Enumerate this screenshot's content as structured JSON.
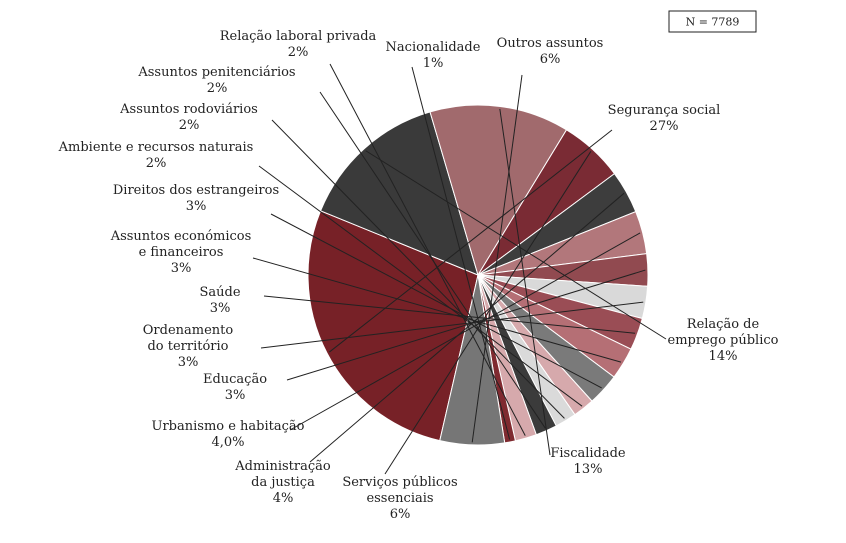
{
  "chart_data": {
    "type": "pie",
    "annotation": "N = 7789",
    "slices": [
      {
        "name": "Segurança social",
        "value_label": "27%",
        "value": 27,
        "color": "#772127"
      },
      {
        "name": "Relação de emprego público",
        "name_lines": [
          "Relação de",
          "emprego público"
        ],
        "value_label": "14%",
        "value": 14,
        "color": "#3a3a3a"
      },
      {
        "name": "Fiscalidade",
        "value_label": "13%",
        "value": 13,
        "color": "#a16a6d"
      },
      {
        "name": "Serviços públicos essenciais",
        "name_lines": [
          "Serviços públicos",
          "essenciais"
        ],
        "value_label": "6%",
        "value": 6,
        "color": "#7a2b34"
      },
      {
        "name": "Administração da justiça",
        "name_lines": [
          "Administração",
          "da justiça"
        ],
        "value_label": "4%",
        "value": 4,
        "color": "#3d3d3d"
      },
      {
        "name": "Urbanismo e habitação",
        "value_label": "4,0%",
        "value": 4,
        "color": "#b2777b"
      },
      {
        "name": "Educação",
        "value_label": "3%",
        "value": 3,
        "color": "#914a50"
      },
      {
        "name": "Ordenamento do território",
        "name_lines": [
          "Ordenamento",
          "do território"
        ],
        "value_label": "3%",
        "value": 3,
        "color": "#d9d9d9"
      },
      {
        "name": "Saúde",
        "value_label": "3%",
        "value": 3,
        "color": "#9a4d55"
      },
      {
        "name": "Assuntos económicos e financeiros",
        "name_lines": [
          "Assuntos económicos",
          "e financeiros"
        ],
        "value_label": "3%",
        "value": 3,
        "color": "#b56f75"
      },
      {
        "name": "Direitos dos estrangeiros",
        "value_label": "3%",
        "value": 3,
        "color": "#7a7a7a"
      },
      {
        "name": "Ambiente e recursos naturais",
        "value_label": "2%",
        "value": 2,
        "color": "#d6a9ac"
      },
      {
        "name": "Assuntos rodoviários",
        "value_label": "2%",
        "value": 2,
        "color": "#dadada"
      },
      {
        "name": "Assuntos penitenciários",
        "value_label": "2%",
        "value": 2,
        "color": "#3b3b3b"
      },
      {
        "name": "Relação laboral privada",
        "value_label": "2%",
        "value": 2,
        "color": "#d6a9ac"
      },
      {
        "name": "Nacionalidade",
        "value_label": "1%",
        "value": 1,
        "color": "#7f2a30"
      },
      {
        "name": "Outros assuntos",
        "value_label": "6%",
        "value": 6,
        "color": "#767676"
      }
    ]
  }
}
